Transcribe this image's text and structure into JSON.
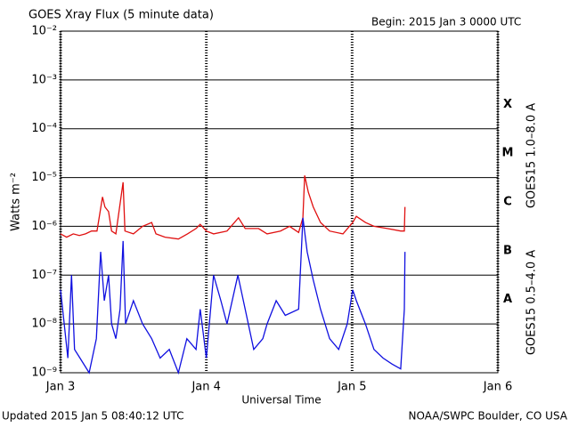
{
  "chart_data": {
    "type": "line",
    "title": "GOES Xray Flux (5 minute data)",
    "subtitle": "Begin:  2015 Jan 3 0000 UTC",
    "y_label": "Watts m⁻²",
    "x_label": "Universal Time",
    "footer_left": "Updated 2015 Jan  5 08:40:12 UTC",
    "footer_right": "NOAA/SWPC Boulder, CO USA",
    "log_y": true,
    "grid": true,
    "flare_classes": [
      "X",
      "M",
      "C",
      "B",
      "A"
    ],
    "xlim": [
      0,
      72
    ],
    "xticks": [
      {
        "value": 0,
        "label": "Jan 3"
      },
      {
        "value": 24,
        "label": "Jan 4"
      },
      {
        "value": 48,
        "label": "Jan 5"
      },
      {
        "value": 72,
        "label": "Jan 6"
      }
    ],
    "ylim": [
      1e-09,
      0.01
    ],
    "yticks": [
      {
        "value": 0.01,
        "label": "10⁻²"
      },
      {
        "value": 0.001,
        "label": "10⁻³"
      },
      {
        "value": 0.0001,
        "label": "10⁻⁴"
      },
      {
        "value": 1e-05,
        "label": "10⁻⁵"
      },
      {
        "value": 1e-06,
        "label": "10⁻⁶"
      },
      {
        "value": 1e-07,
        "label": "10⁻⁷"
      },
      {
        "value": 1e-08,
        "label": "10⁻⁸"
      },
      {
        "value": 1e-09,
        "label": "10⁻⁹"
      }
    ],
    "series": [
      {
        "name": "GOES15 1.0–8.0 A",
        "color": "#e01010",
        "x": [
          0,
          1.0,
          2.1,
          3.1,
          4.1,
          5.1,
          6.0,
          6.9,
          7.3,
          7.9,
          8.4,
          9.1,
          10.3,
          10.6,
          12.0,
          13.5,
          15.0,
          15.7,
          17.2,
          19.4,
          20.9,
          22.3,
          23.0,
          24.0,
          25.2,
          27.4,
          29.3,
          30.4,
          32.6,
          34.0,
          36.2,
          37.7,
          39.2,
          39.9,
          40.2,
          40.8,
          41.6,
          42.8,
          44.3,
          46.5,
          48.1,
          48.7,
          50.2,
          51.6,
          53.8,
          56.0,
          56.6,
          56.7
        ],
        "values": [
          7e-07,
          6e-07,
          7e-07,
          6.5e-07,
          7e-07,
          8e-07,
          8e-07,
          4e-06,
          2.5e-06,
          2e-06,
          8e-07,
          7e-07,
          8e-06,
          8e-07,
          7e-07,
          1e-06,
          1.2e-06,
          7e-07,
          6e-07,
          5.5e-07,
          7e-07,
          9e-07,
          1.1e-06,
          8e-07,
          7e-07,
          8e-07,
          1.5e-06,
          9e-07,
          9e-07,
          7e-07,
          8e-07,
          1e-06,
          7.5e-07,
          1.5e-06,
          1.1e-05,
          5e-06,
          2.5e-06,
          1.2e-06,
          8e-07,
          7e-07,
          1.2e-06,
          1.6e-06,
          1.2e-06,
          1e-06,
          9e-07,
          8e-07,
          8e-07,
          2.5e-06
        ]
      },
      {
        "name": "GOES15 0.5–4.0 A",
        "color": "#1010e0",
        "x": [
          0,
          0.6,
          1.2,
          1.8,
          2.3,
          3.2,
          4.7,
          5.9,
          6.6,
          7.2,
          7.9,
          8.4,
          9.1,
          9.8,
          10.3,
          10.7,
          12.0,
          13.5,
          15.0,
          16.4,
          17.9,
          19.4,
          20.8,
          22.3,
          23.0,
          24.0,
          25.2,
          26.4,
          27.4,
          29.2,
          30.4,
          31.8,
          33.3,
          34.0,
          35.5,
          37.0,
          39.2,
          39.9,
          40.6,
          41.6,
          42.8,
          44.3,
          45.8,
          47.2,
          48.1,
          48.7,
          50.2,
          51.6,
          53.1,
          54.6,
          56.0,
          56.6,
          56.7
        ],
        "values": [
          5e-08,
          1e-08,
          2e-09,
          1e-07,
          3e-09,
          2e-09,
          1e-09,
          5e-09,
          3e-07,
          3e-08,
          1e-07,
          1e-08,
          5e-09,
          2e-08,
          5e-07,
          1e-08,
          3e-08,
          1e-08,
          5e-09,
          2e-09,
          3e-09,
          1e-09,
          5e-09,
          3e-09,
          2e-08,
          2e-09,
          1e-07,
          3e-08,
          1e-08,
          1e-07,
          2e-08,
          3e-09,
          5e-09,
          1e-08,
          3e-08,
          1.5e-08,
          2e-08,
          1.5e-06,
          3e-07,
          8e-08,
          2e-08,
          5e-09,
          3e-09,
          1e-08,
          5e-08,
          3e-08,
          1e-08,
          3e-09,
          2e-09,
          1.5e-09,
          1.2e-09,
          2e-08,
          3e-07
        ]
      }
    ]
  }
}
